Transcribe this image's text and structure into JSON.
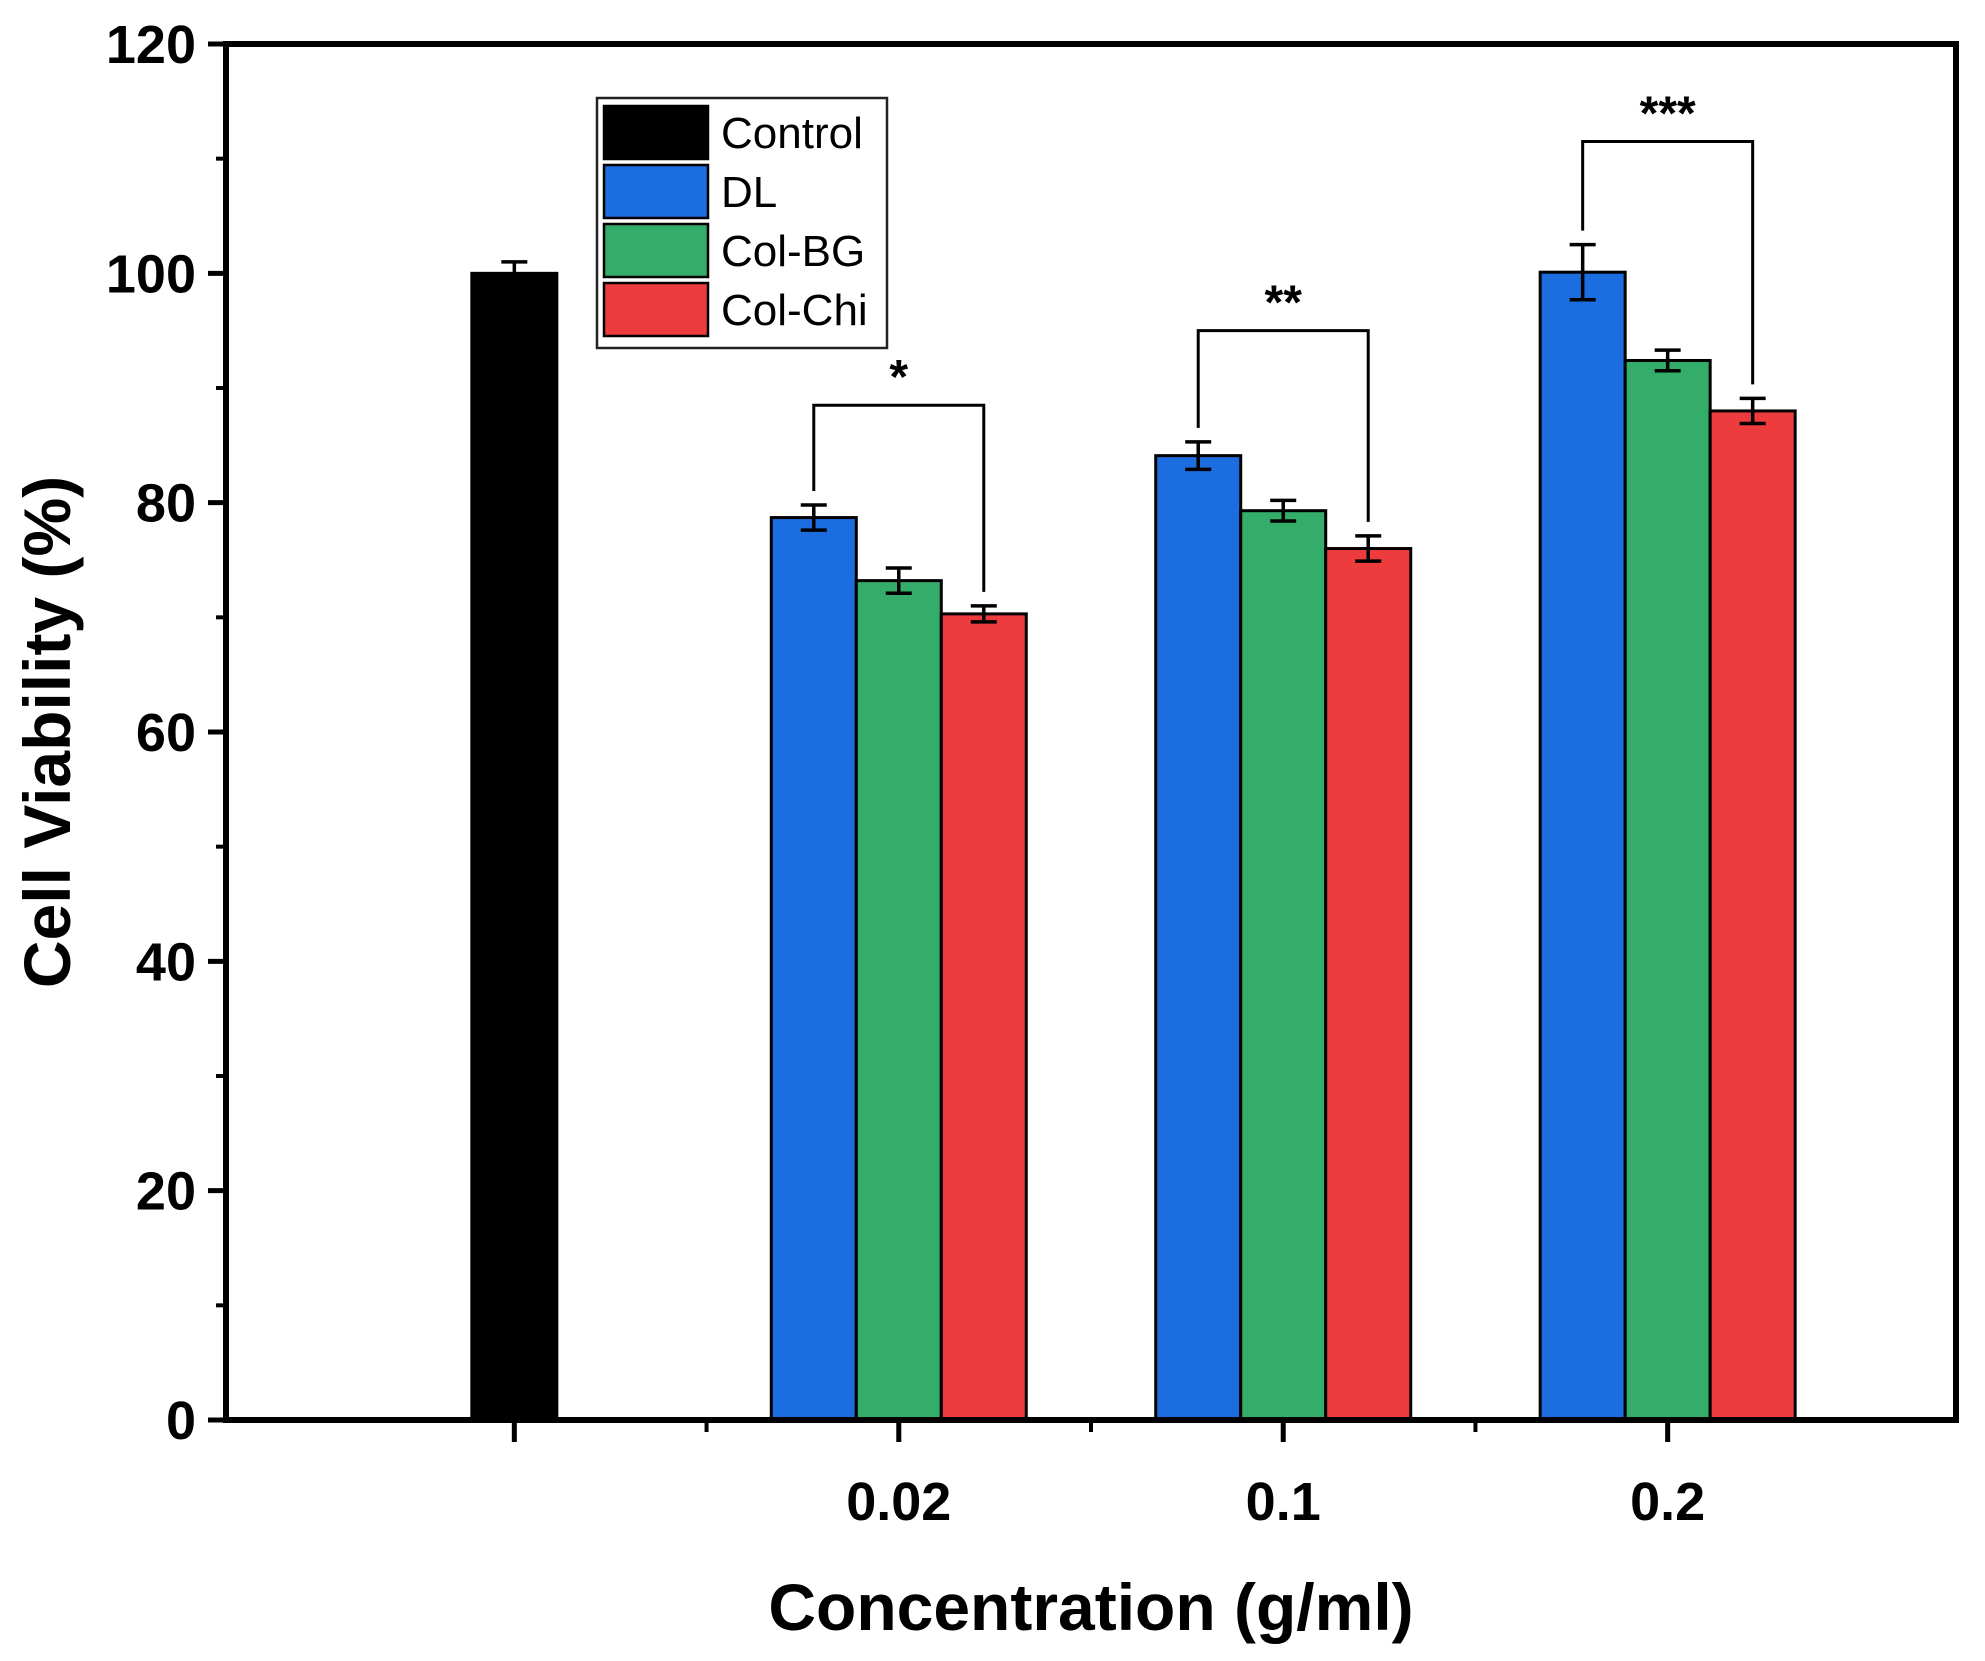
{
  "chart_data": {
    "type": "bar",
    "xlabel": "Concentration (g/ml)",
    "ylabel": "Cell Viability (%)",
    "ylim": [
      0,
      120
    ],
    "yticks": [
      0,
      20,
      40,
      60,
      80,
      100,
      120
    ],
    "categories": [
      "",
      "0.02",
      "0.1",
      "0.2"
    ],
    "series": [
      {
        "name": "Control",
        "color": "#000000",
        "values": [
          100,
          null,
          null,
          null
        ],
        "errors": [
          1.0,
          null,
          null,
          null
        ]
      },
      {
        "name": "DL",
        "color": "#1c6ee0",
        "values": [
          null,
          78.7,
          84.1,
          100.1
        ],
        "errors": [
          null,
          1.1,
          1.2,
          2.4
        ]
      },
      {
        "name": "Col-BG",
        "color": "#34ad6b",
        "values": [
          null,
          73.2,
          79.3,
          92.4
        ],
        "errors": [
          null,
          1.1,
          0.9,
          0.9
        ]
      },
      {
        "name": "Col-Chi",
        "color": "#ee3c3e",
        "values": [
          null,
          70.3,
          76.0,
          88.0
        ],
        "errors": [
          null,
          0.7,
          1.1,
          1.1
        ]
      }
    ],
    "legend": {
      "position": "top-left",
      "entries": [
        "Control",
        "DL",
        "Col-BG",
        "Col-Chi"
      ]
    },
    "annotations": [
      {
        "category": "0.02",
        "from": "DL",
        "to": "Col-Chi",
        "level": 88.5,
        "label": "*"
      },
      {
        "category": "0.1",
        "from": "DL",
        "to": "Col-Chi",
        "level": 95.0,
        "label": "**"
      },
      {
        "category": "0.2",
        "from": "DL",
        "to": "Col-Chi",
        "level": 111.5,
        "label": "***"
      }
    ]
  }
}
